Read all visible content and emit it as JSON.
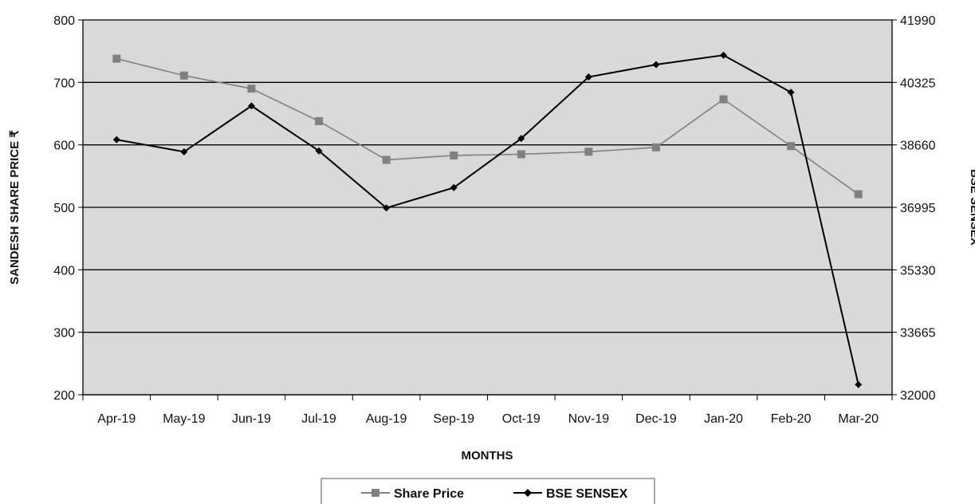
{
  "chart_data": {
    "type": "line",
    "categories": [
      "Apr-19",
      "May-19",
      "Jun-19",
      "Jul-19",
      "Aug-19",
      "Sep-19",
      "Oct-19",
      "Nov-19",
      "Dec-19",
      "Jan-20",
      "Feb-20",
      "Mar-20"
    ],
    "series": [
      {
        "name": "Share Price",
        "axis": "left",
        "color": "#808080",
        "marker": "square",
        "values": [
          738,
          711,
          690,
          638,
          576,
          583,
          585,
          589,
          596,
          673,
          598,
          521
        ]
      },
      {
        "name": "BSE SENSEX",
        "axis": "right",
        "color": "#000000",
        "marker": "diamond",
        "values": [
          38800,
          38475,
          39700,
          38500,
          36980,
          37520,
          38830,
          40470,
          40800,
          41050,
          40060,
          32270
        ]
      }
    ],
    "xlabel": "MONTHS",
    "ylabel": "SANDESH SHARE PRICE ₹",
    "y2label": "BSE SENSEX",
    "ylim": [
      200,
      800
    ],
    "yticks": [
      "800",
      "700",
      "600",
      "500",
      "400",
      "300",
      "200"
    ],
    "y2lim": [
      32000,
      41990
    ],
    "y2ticks": [
      "41990",
      "40325",
      "38660",
      "36995",
      "35330",
      "33665",
      "32000"
    ],
    "grid": true,
    "legend_position": "bottom-center",
    "plot_background": "#d9d9d9"
  }
}
